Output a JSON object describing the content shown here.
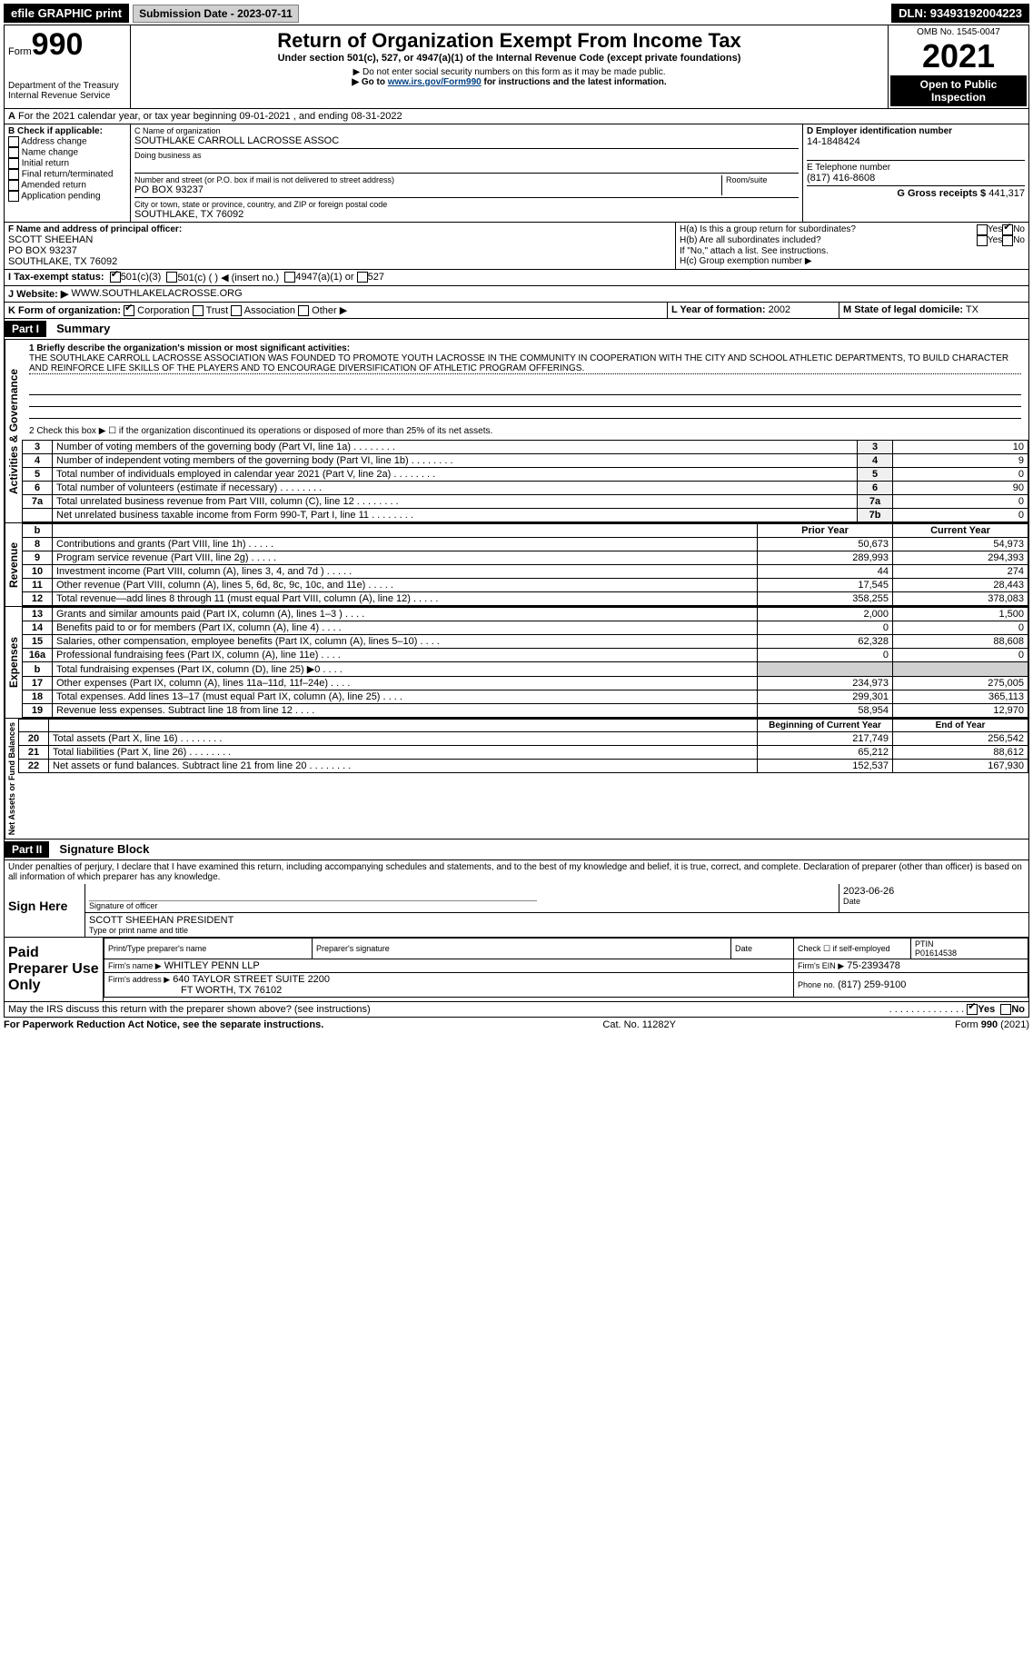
{
  "topbar": {
    "efile": "efile GRAPHIC print",
    "submission_label": "Submission Date - 2023-07-11",
    "dln": "DLN: 93493192004223"
  },
  "header": {
    "form_prefix": "Form",
    "form_number": "990",
    "title": "Return of Organization Exempt From Income Tax",
    "subtitle": "Under section 501(c), 527, or 4947(a)(1) of the Internal Revenue Code (except private foundations)",
    "warning": "▶ Do not enter social security numbers on this form as it may be made public.",
    "goto": "▶ Go to www.irs.gov/Form990 for instructions and the latest information.",
    "dept": "Department of the Treasury",
    "irs": "Internal Revenue Service",
    "omb": "OMB No. 1545-0047",
    "year": "2021",
    "inspect": "Open to Public Inspection"
  },
  "periodA": {
    "text": "For the 2021 calendar year, or tax year beginning 09-01-2021    , and ending 08-31-2022"
  },
  "boxB": {
    "label": "B Check if applicable:",
    "items": [
      "Address change",
      "Name change",
      "Initial return",
      "Final return/terminated",
      "Amended return",
      "Application pending"
    ]
  },
  "boxC": {
    "name_label": "C Name of organization",
    "name": "SOUTHLAKE CARROLL LACROSSE ASSOC",
    "dba_label": "Doing business as",
    "addr_label": "Number and street (or P.O. box if mail is not delivered to street address)",
    "room_label": "Room/suite",
    "addr": "PO BOX 93237",
    "city_label": "City or town, state or province, country, and ZIP or foreign postal code",
    "city": "SOUTHLAKE, TX  76092"
  },
  "boxD": {
    "label": "D Employer identification number",
    "value": "14-1848424"
  },
  "boxE": {
    "label": "E Telephone number",
    "value": "(817) 416-8608"
  },
  "boxG": {
    "label": "G Gross receipts $",
    "value": "441,317"
  },
  "boxF": {
    "label": "F Name and address of principal officer:",
    "line1": "SCOTT SHEEHAN",
    "line2": "PO BOX 93237",
    "line3": "SOUTHLAKE, TX  76092"
  },
  "boxH": {
    "h_a": "H(a)  Is this a group return for subordinates?",
    "h_b": "H(b)  Are all subordinates included?",
    "h_b_note": "If \"No,\" attach a list. See instructions.",
    "h_c": "H(c)  Group exemption number ▶",
    "yes": "Yes",
    "no": "No"
  },
  "boxI": {
    "label": "I  Tax-exempt status:",
    "opt1": "501(c)(3)",
    "opt2": "501(c) (   ) ◀ (insert no.)",
    "opt3": "4947(a)(1) or",
    "opt4": "527"
  },
  "boxJ": {
    "label": "J  Website: ▶",
    "value": "WWW.SOUTHLAKELACROSSE.ORG"
  },
  "boxK": {
    "label": "K Form of organization:",
    "opts": [
      "Corporation",
      "Trust",
      "Association",
      "Other ▶"
    ]
  },
  "boxL": {
    "label": "L Year of formation:",
    "value": "2002"
  },
  "boxM": {
    "label": "M State of legal domicile:",
    "value": "TX"
  },
  "partI": {
    "label": "Part I",
    "title": "Summary",
    "line1_label": "1  Briefly describe the organization's mission or most significant activities:",
    "mission": "THE SOUTHLAKE CARROLL LACROSSE ASSOCIATION WAS FOUNDED TO PROMOTE YOUTH LACROSSE IN THE COMMUNITY IN COOPERATION WITH THE CITY AND SCHOOL ATHLETIC DEPARTMENTS, TO BUILD CHARACTER AND REINFORCE LIFE SKILLS OF THE PLAYERS AND TO ENCOURAGE DIVERSIFICATION OF ATHLETIC PROGRAM OFFERINGS.",
    "line2": "2  Check this box ▶ ☐ if the organization discontinued its operations or disposed of more than 25% of its net assets.",
    "vertical_ag": "Activities & Governance",
    "vertical_rev": "Revenue",
    "vertical_exp": "Expenses",
    "vertical_net": "Net Assets or Fund Balances",
    "governance_rows": [
      {
        "n": "3",
        "desc": "Number of voting members of the governing body (Part VI, line 1a)",
        "box": "3",
        "val": "10"
      },
      {
        "n": "4",
        "desc": "Number of independent voting members of the governing body (Part VI, line 1b)",
        "box": "4",
        "val": "9"
      },
      {
        "n": "5",
        "desc": "Total number of individuals employed in calendar year 2021 (Part V, line 2a)",
        "box": "5",
        "val": "0"
      },
      {
        "n": "6",
        "desc": "Total number of volunteers (estimate if necessary)",
        "box": "6",
        "val": "90"
      },
      {
        "n": "7a",
        "desc": "Total unrelated business revenue from Part VIII, column (C), line 12",
        "box": "7a",
        "val": "0"
      },
      {
        "n": "",
        "desc": "Net unrelated business taxable income from Form 990-T, Part I, line 11",
        "box": "7b",
        "val": "0"
      }
    ],
    "col_prior": "Prior Year",
    "col_current": "Current Year",
    "col_beginning": "Beginning of Current Year",
    "col_end": "End of Year",
    "revenue_rows": [
      {
        "n": "8",
        "desc": "Contributions and grants (Part VIII, line 1h)",
        "prior": "50,673",
        "curr": "54,973"
      },
      {
        "n": "9",
        "desc": "Program service revenue (Part VIII, line 2g)",
        "prior": "289,993",
        "curr": "294,393"
      },
      {
        "n": "10",
        "desc": "Investment income (Part VIII, column (A), lines 3, 4, and 7d )",
        "prior": "44",
        "curr": "274"
      },
      {
        "n": "11",
        "desc": "Other revenue (Part VIII, column (A), lines 5, 6d, 8c, 9c, 10c, and 11e)",
        "prior": "17,545",
        "curr": "28,443"
      },
      {
        "n": "12",
        "desc": "Total revenue—add lines 8 through 11 (must equal Part VIII, column (A), line 12)",
        "prior": "358,255",
        "curr": "378,083"
      }
    ],
    "expense_rows": [
      {
        "n": "13",
        "desc": "Grants and similar amounts paid (Part IX, column (A), lines 1–3 )",
        "prior": "2,000",
        "curr": "1,500"
      },
      {
        "n": "14",
        "desc": "Benefits paid to or for members (Part IX, column (A), line 4)",
        "prior": "0",
        "curr": "0"
      },
      {
        "n": "15",
        "desc": "Salaries, other compensation, employee benefits (Part IX, column (A), lines 5–10)",
        "prior": "62,328",
        "curr": "88,608"
      },
      {
        "n": "16a",
        "desc": "Professional fundraising fees (Part IX, column (A), line 11e)",
        "prior": "0",
        "curr": "0"
      },
      {
        "n": "b",
        "desc": "Total fundraising expenses (Part IX, column (D), line 25) ▶0",
        "prior": "",
        "curr": ""
      },
      {
        "n": "17",
        "desc": "Other expenses (Part IX, column (A), lines 11a–11d, 11f–24e)",
        "prior": "234,973",
        "curr": "275,005"
      },
      {
        "n": "18",
        "desc": "Total expenses. Add lines 13–17 (must equal Part IX, column (A), line 25)",
        "prior": "299,301",
        "curr": "365,113"
      },
      {
        "n": "19",
        "desc": "Revenue less expenses. Subtract line 18 from line 12",
        "prior": "58,954",
        "curr": "12,970"
      }
    ],
    "net_rows": [
      {
        "n": "20",
        "desc": "Total assets (Part X, line 16)",
        "prior": "217,749",
        "curr": "256,542"
      },
      {
        "n": "21",
        "desc": "Total liabilities (Part X, line 26)",
        "prior": "65,212",
        "curr": "88,612"
      },
      {
        "n": "22",
        "desc": "Net assets or fund balances. Subtract line 21 from line 20",
        "prior": "152,537",
        "curr": "167,930"
      }
    ]
  },
  "partII": {
    "label": "Part II",
    "title": "Signature Block",
    "penalty": "Under penalties of perjury, I declare that I have examined this return, including accompanying schedules and statements, and to the best of my knowledge and belief, it is true, correct, and complete. Declaration of preparer (other than officer) is based on all information of which preparer has any knowledge.",
    "sign_here": "Sign Here",
    "sig_officer": "Signature of officer",
    "sig_date": "Date",
    "sig_date_val": "2023-06-26",
    "officer_name": "SCOTT SHEEHAN  PRESIDENT",
    "type_name": "Type or print name and title",
    "paid_prep": "Paid Preparer Use Only",
    "prep_name_label": "Print/Type preparer's name",
    "prep_sig_label": "Preparer's signature",
    "date_label": "Date",
    "check_self": "Check ☐ if self-employed",
    "ptin_label": "PTIN",
    "ptin": "P01614538",
    "firm_name_label": "Firm's name    ▶",
    "firm_name": "WHITLEY PENN LLP",
    "firm_ein_label": "Firm's EIN ▶",
    "firm_ein": "75-2393478",
    "firm_addr_label": "Firm's address ▶",
    "firm_addr": "640 TAYLOR STREET SUITE 2200",
    "firm_city": "FT WORTH, TX  76102",
    "phone_label": "Phone no.",
    "phone": "(817) 259-9100",
    "discuss": "May the IRS discuss this return with the preparer shown above? (see instructions)",
    "discuss_yes": "Yes",
    "discuss_no": "No"
  },
  "footer": {
    "paperwork": "For Paperwork Reduction Act Notice, see the separate instructions.",
    "cat": "Cat. No. 11282Y",
    "form": "Form 990 (2021)"
  }
}
